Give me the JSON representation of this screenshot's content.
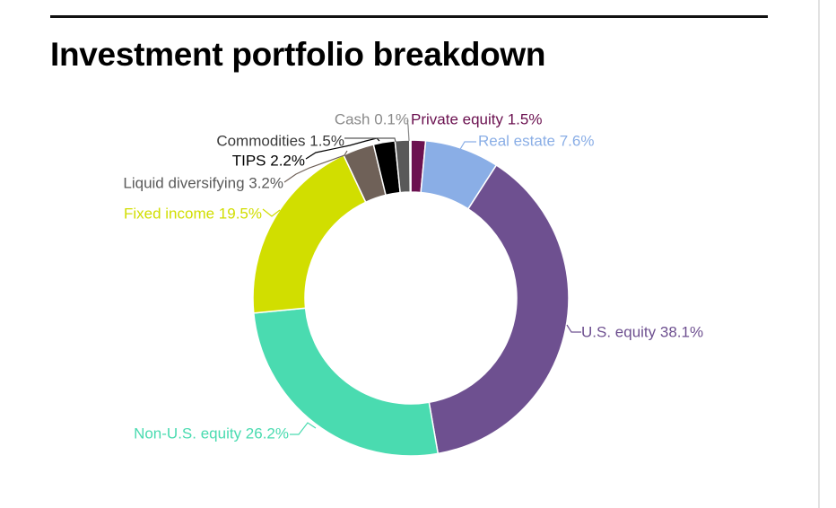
{
  "title": "Investment portfolio breakdown",
  "chart_data": {
    "type": "pie",
    "donut": true,
    "title": "Investment portfolio breakdown",
    "unit": "%",
    "slices": [
      {
        "label": "Private equity 1.5%",
        "name": "Private equity",
        "value": 1.5,
        "color": "#6b1150"
      },
      {
        "label": "Real estate 7.6%",
        "name": "Real estate",
        "value": 7.6,
        "color": "#8aaee6"
      },
      {
        "label": "U.S. equity 38.1%",
        "name": "U.S. equity",
        "value": 38.1,
        "color": "#6e5090"
      },
      {
        "label": "Non-U.S. equity 26.2%",
        "name": "Non-U.S. equity",
        "value": 26.2,
        "color": "#4adbb0"
      },
      {
        "label": "Fixed income 19.5%",
        "name": "Fixed income",
        "value": 19.5,
        "color": "#d1de00"
      },
      {
        "label": "Liquid diversifying 3.2%",
        "name": "Liquid diversifying",
        "value": 3.2,
        "color": "#6f6158"
      },
      {
        "label": "TIPS 2.2%",
        "name": "TIPS",
        "value": 2.2,
        "color": "#000000"
      },
      {
        "label": "Commodities 1.5%",
        "name": "Commodities",
        "value": 1.5,
        "color": "#595959"
      },
      {
        "label": "Cash 0.1%",
        "name": "Cash",
        "value": 0.1,
        "color": "#999999"
      }
    ]
  }
}
